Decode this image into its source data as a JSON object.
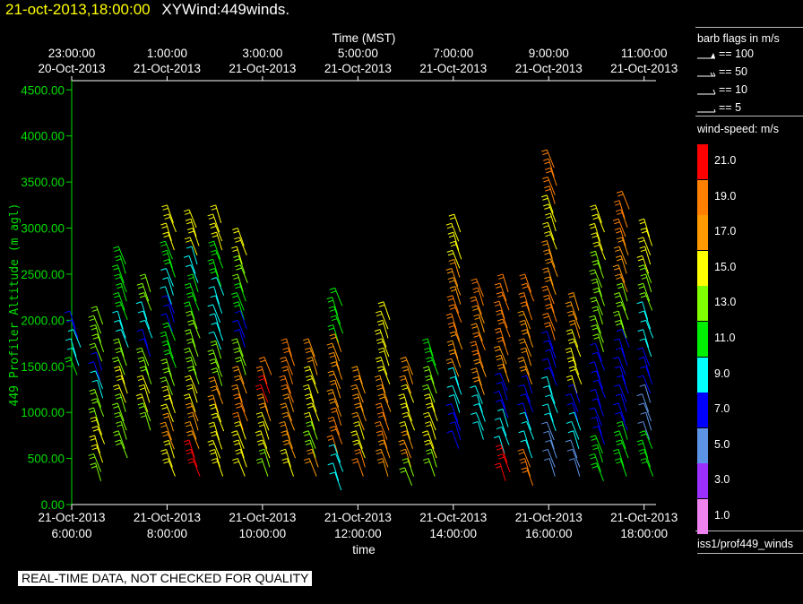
{
  "header": {
    "datetime": "21-oct-2013,18:00:00",
    "product": "XYWind:449winds."
  },
  "chart_data": {
    "type": "scatter",
    "subtype": "wind-barb profile",
    "top_axis": {
      "label": "Time (MST)",
      "ticks": [
        {
          "time": "23:00:00",
          "date": "20-Oct-2013"
        },
        {
          "time": "1:00:00",
          "date": "21-Oct-2013"
        },
        {
          "time": "3:00:00",
          "date": "21-Oct-2013"
        },
        {
          "time": "5:00:00",
          "date": "21-Oct-2013"
        },
        {
          "time": "7:00:00",
          "date": "21-Oct-2013"
        },
        {
          "time": "9:00:00",
          "date": "21-Oct-2013"
        },
        {
          "time": "11:00:00",
          "date": "21-Oct-2013"
        }
      ]
    },
    "x_axis": {
      "label": "time",
      "range": [
        "2013-10-21 06:00",
        "2013-10-21 18:15"
      ],
      "ticks": [
        {
          "date": "21-Oct-2013",
          "time": "6:00:00"
        },
        {
          "date": "21-Oct-2013",
          "time": "8:00:00"
        },
        {
          "date": "21-Oct-2013",
          "time": "10:00:00"
        },
        {
          "date": "21-Oct-2013",
          "time": "12:00:00"
        },
        {
          "date": "21-Oct-2013",
          "time": "14:00:00"
        },
        {
          "date": "21-Oct-2013",
          "time": "16:00:00"
        },
        {
          "date": "21-Oct-2013",
          "time": "18:00:00"
        }
      ]
    },
    "y_axis": {
      "label": "449 Profiler Altitude (m agl)",
      "range": [
        0,
        4600
      ],
      "ticks": [
        "0.00",
        "500.00",
        "1000.00",
        "1500.00",
        "2000.00",
        "2500.00",
        "3000.00",
        "3500.00",
        "4000.00",
        "4500.00"
      ]
    },
    "profile_times": [
      "06:00",
      "06:30",
      "07:00",
      "07:30",
      "08:00",
      "08:30",
      "09:00",
      "09:30",
      "10:00",
      "10:30",
      "11:00",
      "11:30",
      "12:00",
      "12:30",
      "13:00",
      "13:30",
      "14:00",
      "14:30",
      "15:00",
      "15:30",
      "16:00",
      "16:30",
      "17:00",
      "17:30",
      "18:00"
    ],
    "profiles": [
      {
        "top": 2100,
        "bottom": 1600,
        "speeds": [
          7,
          8,
          9,
          11
        ]
      },
      {
        "top": 2150,
        "bottom": 450,
        "speeds": [
          12,
          13,
          7,
          8,
          12,
          15,
          14,
          13
        ]
      },
      {
        "top": 2800,
        "bottom": 700,
        "speeds": [
          11,
          10,
          8,
          12,
          14,
          13,
          12
        ]
      },
      {
        "top": 2500,
        "bottom": 1000,
        "speeds": [
          12,
          8,
          7,
          13,
          14,
          12
        ]
      },
      {
        "top": 3250,
        "bottom": 500,
        "speeds": [
          14,
          10,
          8,
          7,
          11,
          13,
          15,
          16,
          14
        ]
      },
      {
        "top": 3200,
        "bottom": 500,
        "speeds": [
          14,
          9,
          10,
          12,
          13,
          15,
          17,
          20
        ]
      },
      {
        "top": 3250,
        "bottom": 500,
        "speeds": [
          14,
          10,
          9,
          8,
          12,
          17,
          15,
          14
        ]
      },
      {
        "top": 3000,
        "bottom": 500,
        "speeds": [
          15,
          12,
          10,
          7,
          13,
          17,
          18,
          15,
          14
        ]
      },
      {
        "top": 1600,
        "bottom": 500,
        "speeds": [
          18,
          20,
          17,
          15,
          14,
          13
        ]
      },
      {
        "top": 1800,
        "bottom": 500,
        "speeds": [
          19,
          18,
          17,
          16,
          14
        ]
      },
      {
        "top": 1800,
        "bottom": 500,
        "speeds": [
          17,
          15,
          14,
          13,
          16
        ]
      },
      {
        "top": 2350,
        "bottom": 350,
        "speeds": [
          11,
          16,
          17,
          18,
          9
        ]
      },
      {
        "top": 1500,
        "bottom": 500,
        "speeds": [
          17,
          16,
          15,
          18
        ]
      },
      {
        "top": 2200,
        "bottom": 500,
        "speeds": [
          15,
          14,
          17,
          18,
          16
        ]
      },
      {
        "top": 1600,
        "bottom": 400,
        "speeds": [
          16,
          15,
          14,
          17,
          12
        ]
      },
      {
        "top": 1800,
        "bottom": 500,
        "speeds": [
          11,
          13,
          14,
          15,
          12
        ]
      },
      {
        "top": 3150,
        "bottom": 800,
        "speeds": [
          15,
          17,
          18,
          16,
          9,
          7
        ]
      },
      {
        "top": 2450,
        "bottom": 900,
        "speeds": [
          18,
          17,
          19,
          16,
          8,
          9
        ]
      },
      {
        "top": 2500,
        "bottom": 450,
        "speeds": [
          19,
          18,
          17,
          7,
          9,
          20
        ]
      },
      {
        "top": 2500,
        "bottom": 400,
        "speeds": [
          19,
          17,
          16,
          7,
          9,
          18
        ]
      },
      {
        "top": 3850,
        "bottom": 500,
        "speeds": [
          19,
          15,
          17,
          18,
          7,
          9,
          5
        ]
      },
      {
        "top": 2300,
        "bottom": 500,
        "speeds": [
          16,
          15,
          14,
          7,
          9,
          5
        ]
      },
      {
        "top": 3250,
        "bottom": 450,
        "speeds": [
          15,
          13,
          12,
          7,
          6,
          11
        ]
      },
      {
        "top": 3400,
        "bottom": 500,
        "speeds": [
          18,
          17,
          13,
          7,
          6,
          11
        ]
      },
      {
        "top": 3100,
        "bottom": 500,
        "speeds": [
          15,
          12,
          9,
          7,
          5,
          11
        ]
      }
    ]
  },
  "legend_barbs": {
    "title": "barb flags in m/s",
    "items": [
      {
        "label": "== 100"
      },
      {
        "label": "== 50"
      },
      {
        "label": "== 10"
      },
      {
        "label": "== 5"
      }
    ]
  },
  "legend_speed": {
    "title": "wind-speed: m/s",
    "items": [
      {
        "label": "21.0",
        "color": "#ff0000"
      },
      {
        "label": "19.0",
        "color": "#ff7f00"
      },
      {
        "label": "17.0",
        "color": "#ff9900"
      },
      {
        "label": "15.0",
        "color": "#ffff00"
      },
      {
        "label": "13.0",
        "color": "#80ff00"
      },
      {
        "label": "11.0",
        "color": "#00ee00"
      },
      {
        "label": "9.0",
        "color": "#00ffff"
      },
      {
        "label": "7.0",
        "color": "#0000ff"
      },
      {
        "label": "5.0",
        "color": "#5c93e6"
      },
      {
        "label": "3.0",
        "color": "#9b30ff"
      },
      {
        "label": "1.0",
        "color": "#ee82ee"
      }
    ]
  },
  "source": "iss1/prof449_winds",
  "warning": "REAL-TIME DATA, NOT CHECKED FOR QUALITY",
  "colors": {
    "axis": "#ffffff",
    "y_axis": "#00dd00",
    "datetime": "#ffff00"
  }
}
